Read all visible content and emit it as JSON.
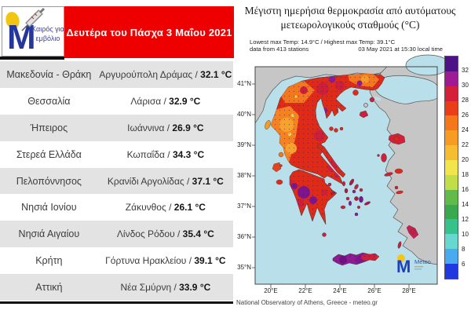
{
  "logo": {
    "letter": "M",
    "line1": "Καιρός για",
    "line2": "εμβόλιο"
  },
  "banner": {
    "text": "Δευτέρα του Πάσχα 3 Μαΐου 2021",
    "color": "#ee0000"
  },
  "table": {
    "rows": [
      {
        "region": "Μακεδονία - Θράκη",
        "station": "Αργυρούπολη Δράμας",
        "temp": "32.1 °C"
      },
      {
        "region": "Θεσσαλία",
        "station": "Λάρισα",
        "temp": "32.9 °C"
      },
      {
        "region": "Ήπειρος",
        "station": "Ιωάννινα",
        "temp": "26.9 °C"
      },
      {
        "region": "Στερεά Ελλάδα",
        "station": "Κωπαΐδα",
        "temp": "34.3 °C"
      },
      {
        "region": "Πελοπόννησος",
        "station": "Κρανίδι Αργολίδας",
        "temp": "37.1 °C"
      },
      {
        "region": "Νησιά Ιονίου",
        "station": "Ζάκυνθος",
        "temp": "26.1 °C"
      },
      {
        "region": "Νησιά Αιγαίου",
        "station": "Λίνδος Ρόδου",
        "temp": "35.4 °C"
      },
      {
        "region": "Κρήτη",
        "station": "Γόρτυνα Ηρακλείου",
        "temp": "39.1 °C"
      },
      {
        "region": "Αττική",
        "station": "Νέα Σμύρνη",
        "temp": "33.9 °C"
      }
    ]
  },
  "map_panel": {
    "title_line1": "Μέγιστη ημερήσια θερμοκρασία από αυτόματους",
    "title_line2": "μετεωρολογικούς σταθμούς (°C)",
    "stats_line": "Lowest max Temp: 14.9°C / Highest max Temp: 39.1°C",
    "stations_line": "data from 413 stations",
    "datetime_line": "03 May 2021 at 15:30 local time",
    "credit": "National Observatory of Athens, Greece - meteo.gr",
    "meteo_brand": "Meteo",
    "axes": {
      "lat_labels": [
        "41°N",
        "40°N",
        "39°N",
        "38°N",
        "37°N",
        "36°N",
        "35°N"
      ],
      "lon_labels": [
        "20°E",
        "22°E",
        "24°E",
        "26°E",
        "28°E"
      ]
    },
    "colorbar": {
      "tick_labels": [
        "32",
        "30",
        "28",
        "26",
        "24",
        "22",
        "20",
        "18",
        "16",
        "14",
        "12",
        "10",
        "8",
        "6"
      ],
      "segment_colors": [
        "#4d1286",
        "#9e1b93",
        "#d42038",
        "#ea3e17",
        "#f4771b",
        "#f79b22",
        "#f6bc32",
        "#f2e44c",
        "#c3dc49",
        "#62bb49",
        "#39a84f",
        "#37c28c",
        "#67d8cf",
        "#49aaf0",
        "#2038df"
      ],
      "sea_color": "#b9e0ea"
    }
  }
}
